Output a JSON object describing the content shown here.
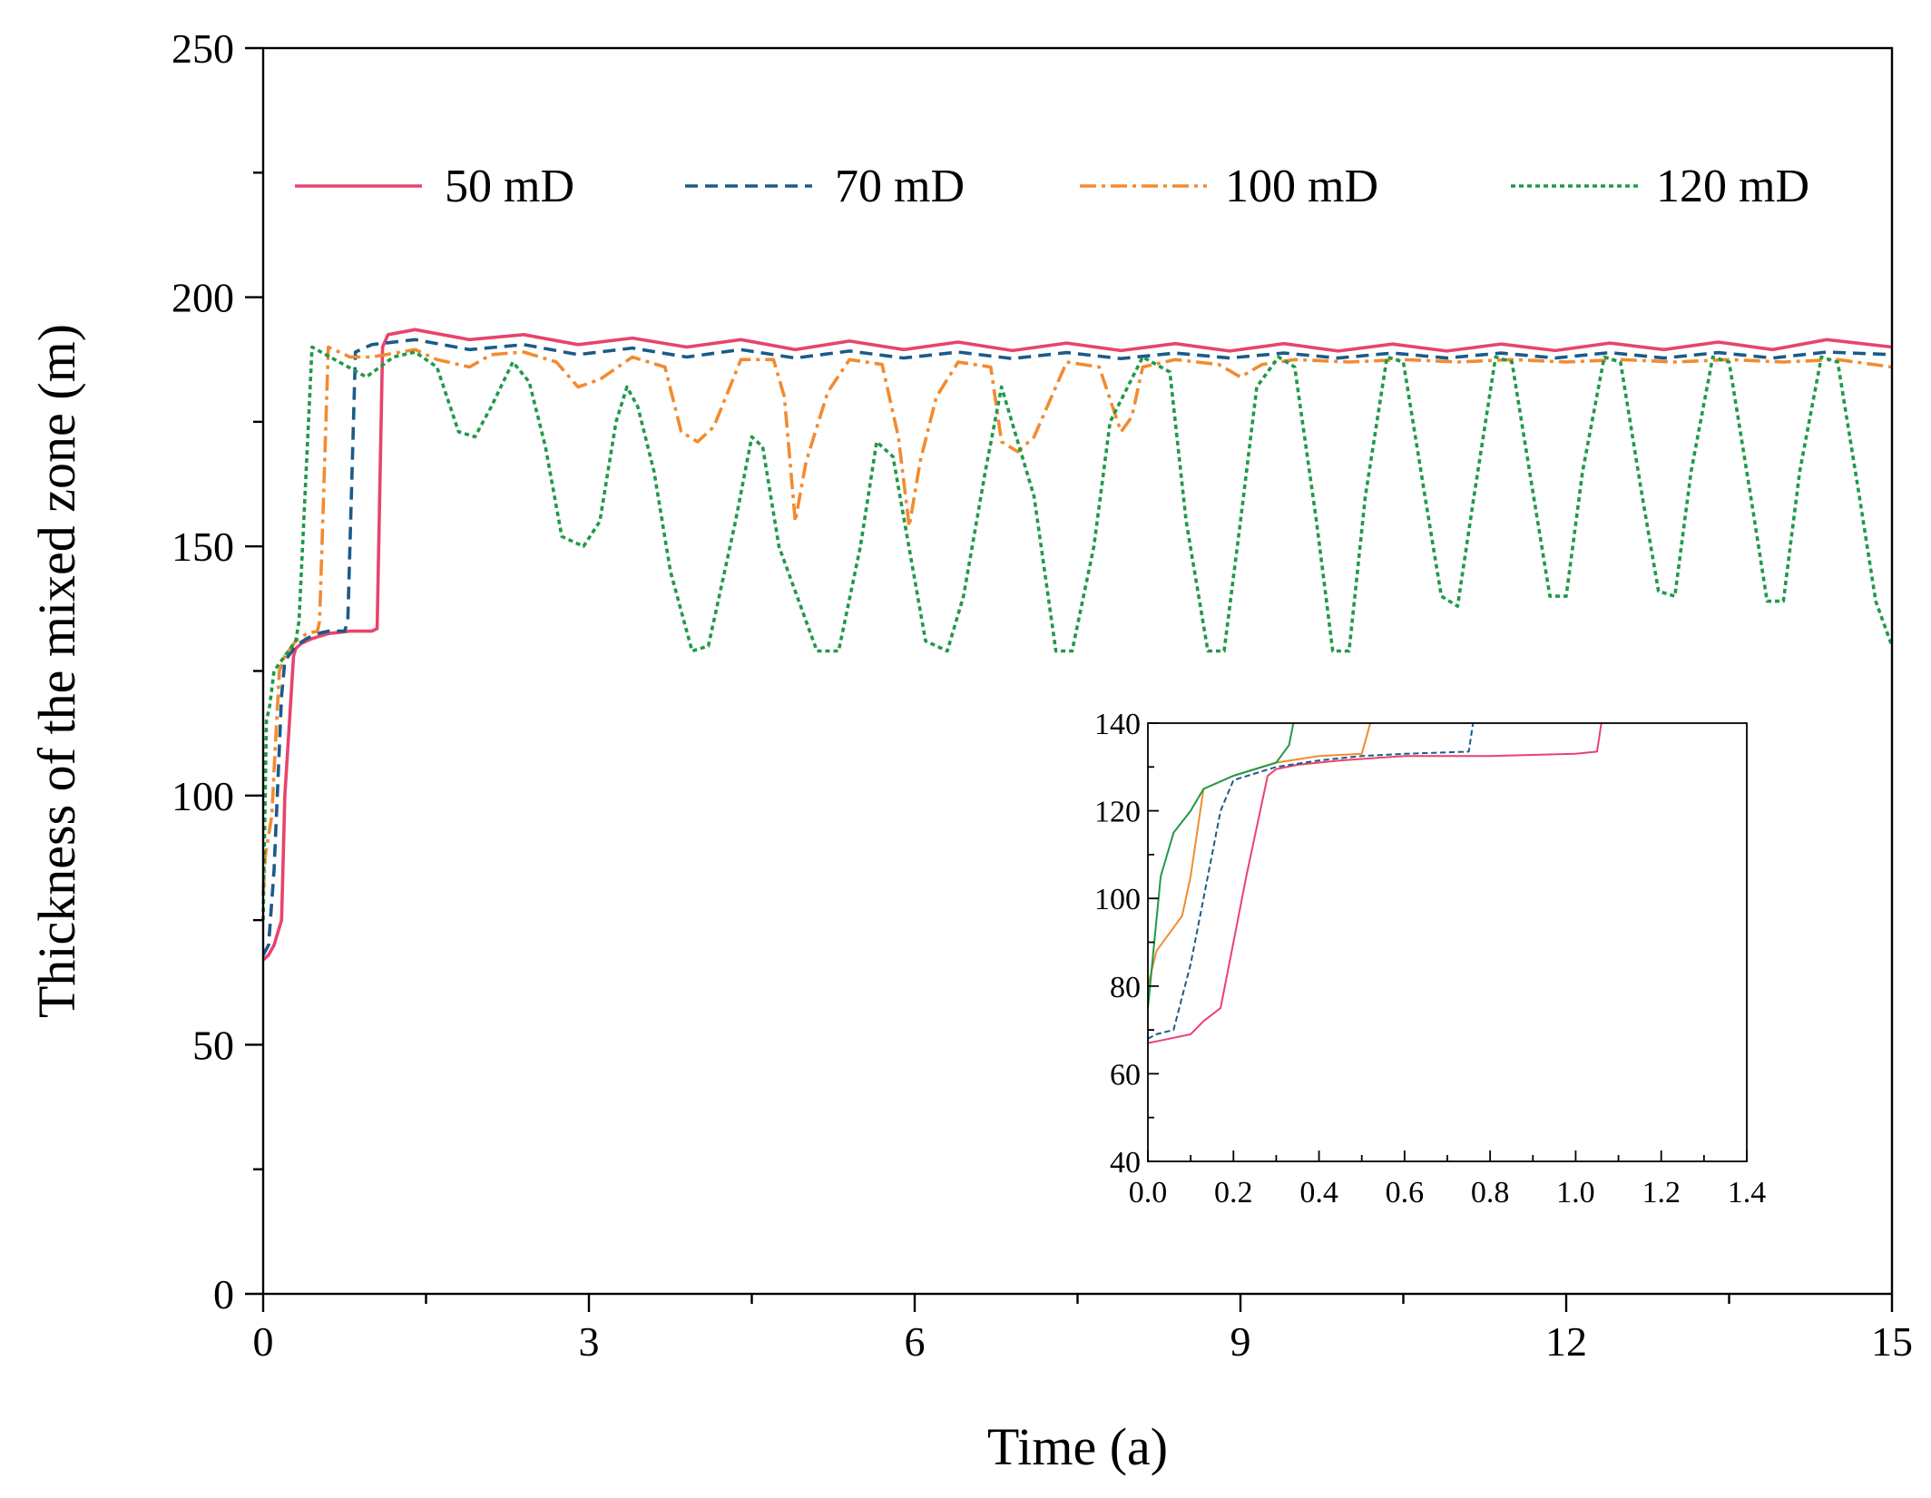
{
  "chart_data": [
    {
      "type": "line",
      "title": "",
      "xlabel": "Time (a)",
      "ylabel": "Thickness of the mixed zone (m)",
      "xlim": [
        0,
        15
      ],
      "ylim": [
        0,
        250
      ],
      "xticks": [
        0,
        3,
        6,
        9,
        12,
        15
      ],
      "yticks": [
        0,
        50,
        100,
        150,
        200,
        250
      ],
      "xtick_labels": [
        "0",
        "3",
        "6",
        "9",
        "12",
        "15"
      ],
      "ytick_labels": [
        "0",
        "50",
        "100",
        "150",
        "200",
        "250"
      ],
      "grid": false,
      "legend_position": "top",
      "series": [
        {
          "name": "50 mD",
          "color": "#e8436e",
          "dash": "solid",
          "x": [
            0,
            0.05,
            0.1,
            0.17,
            0.2,
            0.28,
            0.3,
            0.35,
            0.45,
            0.6,
            0.8,
            1.0,
            1.05,
            1.1,
            1.15,
            1.4,
            1.9,
            2.4,
            2.9,
            3.4,
            3.9,
            4.4,
            4.9,
            5.4,
            5.9,
            6.4,
            6.9,
            7.4,
            7.9,
            8.4,
            8.9,
            9.4,
            9.9,
            10.4,
            10.9,
            11.4,
            11.9,
            12.4,
            12.9,
            13.4,
            13.9,
            14.4,
            15.0
          ],
          "y": [
            67,
            68,
            70,
            75,
            100,
            128,
            129.5,
            130.5,
            131.5,
            132.5,
            133,
            133,
            133.5,
            190,
            192.5,
            193.5,
            191.5,
            192.5,
            190.5,
            191.8,
            190,
            191.5,
            189.5,
            191.2,
            189.5,
            191,
            189.3,
            190.8,
            189.3,
            190.7,
            189.2,
            190.7,
            189.2,
            190.6,
            189.2,
            190.6,
            189.3,
            190.8,
            189.5,
            191,
            189.5,
            191.5,
            190
          ]
        },
        {
          "name": "70 mD",
          "color": "#1a5b8a",
          "dash": "dashed",
          "x": [
            0,
            0.05,
            0.1,
            0.13,
            0.17,
            0.2,
            0.3,
            0.4,
            0.5,
            0.6,
            0.75,
            0.78,
            0.85,
            1.0,
            1.4,
            1.9,
            2.4,
            2.9,
            3.4,
            3.9,
            4.4,
            4.9,
            5.4,
            5.9,
            6.4,
            6.9,
            7.4,
            7.9,
            8.4,
            8.9,
            9.4,
            9.9,
            10.4,
            10.9,
            11.4,
            11.9,
            12.4,
            12.9,
            13.4,
            13.9,
            14.4,
            15.0
          ],
          "y": [
            68,
            70,
            85,
            100,
            120,
            127,
            130,
            131.5,
            132.5,
            133,
            133,
            135,
            189,
            190.5,
            191.5,
            189.5,
            190.5,
            188.5,
            189.8,
            188,
            189.5,
            187.8,
            189.2,
            187.8,
            189,
            187.7,
            188.9,
            187.7,
            188.8,
            187.8,
            188.8,
            187.8,
            188.8,
            187.8,
            188.8,
            187.8,
            188.9,
            187.8,
            188.9,
            187.8,
            189,
            188.5
          ]
        },
        {
          "name": "100 mD",
          "color": "#f28b30",
          "dash": "dashdot",
          "x": [
            0,
            0.02,
            0.05,
            0.08,
            0.1,
            0.15,
            0.2,
            0.3,
            0.4,
            0.5,
            0.52,
            0.6,
            0.8,
            1.0,
            1.4,
            1.6,
            1.9,
            2.1,
            2.4,
            2.7,
            2.9,
            3.1,
            3.4,
            3.7,
            3.85,
            4.0,
            4.15,
            4.4,
            4.7,
            4.8,
            4.9,
            5.0,
            5.2,
            5.4,
            5.7,
            5.85,
            5.95,
            6.05,
            6.2,
            6.4,
            6.7,
            6.8,
            6.95,
            7.1,
            7.4,
            7.7,
            7.9,
            8.0,
            8.1,
            8.4,
            8.8,
            9.0,
            9.2,
            9.5,
            10.0,
            10.5,
            11.0,
            11.5,
            12.0,
            12.5,
            13.0,
            13.5,
            14.0,
            14.5,
            15.0
          ],
          "y": [
            80,
            88,
            92,
            96,
            105,
            125,
            128,
            131,
            132.5,
            133,
            135,
            190,
            188,
            188,
            189.5,
            187.5,
            186,
            188.5,
            189,
            187,
            182,
            183.5,
            188,
            186,
            173,
            171,
            174,
            187.5,
            187.5,
            180,
            155,
            167,
            181,
            187.5,
            186.5,
            172,
            154,
            167,
            180,
            187,
            186,
            171,
            169,
            172,
            187,
            186,
            173,
            176,
            186,
            187.5,
            186.5,
            184,
            186.5,
            187.5,
            187,
            187.5,
            187,
            187.5,
            187,
            187.5,
            187,
            187.5,
            187,
            187.5,
            186
          ]
        },
        {
          "name": "120 mD",
          "color": "#1f9a48",
          "dash": "dotted",
          "x": [
            0,
            0.03,
            0.06,
            0.1,
            0.2,
            0.3,
            0.33,
            0.45,
            0.7,
            0.95,
            1.2,
            1.4,
            1.6,
            1.8,
            1.95,
            2.1,
            2.3,
            2.45,
            2.6,
            2.75,
            2.95,
            3.1,
            3.25,
            3.35,
            3.45,
            3.6,
            3.75,
            3.95,
            4.1,
            4.2,
            4.35,
            4.5,
            4.6,
            4.75,
            5.1,
            5.3,
            5.5,
            5.65,
            5.8,
            6.1,
            6.3,
            6.45,
            6.65,
            6.8,
            7.1,
            7.3,
            7.45,
            7.65,
            7.8,
            8.1,
            8.35,
            8.5,
            8.7,
            8.85,
            9.0,
            9.15,
            9.35,
            9.5,
            9.7,
            9.85,
            10.0,
            10.15,
            10.35,
            10.5,
            10.7,
            10.85,
            11.0,
            11.15,
            11.35,
            11.5,
            11.7,
            11.85,
            12.0,
            12.15,
            12.35,
            12.5,
            12.7,
            12.85,
            13.0,
            13.15,
            13.35,
            13.5,
            13.7,
            13.85,
            14.0,
            14.15,
            14.35,
            14.5,
            14.7,
            14.85,
            15.0
          ],
          "y": [
            75,
            115,
            118,
            125,
            128,
            131,
            135,
            190,
            187,
            184,
            188,
            189,
            186,
            173,
            172,
            178,
            187,
            183,
            170,
            152,
            150,
            155,
            175,
            182,
            178,
            165,
            145,
            129,
            130,
            140,
            155,
            172,
            170,
            150,
            129,
            129,
            150,
            171,
            168,
            131,
            129,
            140,
            165,
            182,
            160,
            129,
            129,
            150,
            175,
            188,
            185,
            155,
            129,
            129,
            155,
            182,
            188,
            186,
            155,
            129,
            129,
            160,
            188,
            187,
            160,
            140,
            138,
            160,
            188,
            187,
            160,
            140,
            140,
            165,
            188,
            187,
            160,
            141,
            140,
            165,
            188,
            187,
            160,
            139,
            139,
            165,
            188,
            187,
            160,
            139,
            130
          ]
        }
      ]
    },
    {
      "type": "line",
      "title": "",
      "xlabel": "",
      "ylabel": "",
      "xlim": [
        0,
        1.4
      ],
      "ylim": [
        40,
        140
      ],
      "xticks": [
        0,
        0.2,
        0.4,
        0.6,
        0.8,
        1.0,
        1.2,
        1.4
      ],
      "yticks": [
        40,
        60,
        80,
        100,
        120,
        140
      ],
      "xtick_labels": [
        "0.0",
        "0.2",
        "0.4",
        "0.6",
        "0.8",
        "1.0",
        "1.2",
        "1.4"
      ],
      "ytick_labels": [
        "40",
        "60",
        "80",
        "100",
        "120",
        "140"
      ],
      "grid": false,
      "series": [
        {
          "name": "50 mD",
          "color": "#e8436e",
          "dash": "solid",
          "x": [
            0,
            0.05,
            0.1,
            0.13,
            0.17,
            0.2,
            0.23,
            0.28,
            0.3,
            0.35,
            0.45,
            0.6,
            0.8,
            1.0,
            1.05,
            1.06
          ],
          "y": [
            67,
            68,
            69,
            72,
            75,
            90,
            105,
            128,
            129.5,
            130.5,
            131.5,
            132.5,
            132.5,
            133,
            133.5,
            140
          ]
        },
        {
          "name": "70 mD",
          "color": "#1a5b8a",
          "dash": "dashed",
          "x": [
            0,
            0.02,
            0.06,
            0.1,
            0.13,
            0.17,
            0.2,
            0.3,
            0.4,
            0.5,
            0.6,
            0.75,
            0.76
          ],
          "y": [
            68,
            69,
            70,
            85,
            100,
            120,
            127,
            130,
            131.5,
            132.5,
            133,
            133.5,
            140
          ]
        },
        {
          "name": "100 mD",
          "color": "#f28b30",
          "dash": "solid",
          "x": [
            0,
            0.02,
            0.05,
            0.08,
            0.1,
            0.13,
            0.2,
            0.3,
            0.4,
            0.5,
            0.52
          ],
          "y": [
            80,
            88,
            92,
            96,
            105,
            125,
            128,
            131,
            132.5,
            133,
            140
          ]
        },
        {
          "name": "120 mD",
          "color": "#1f9a48",
          "dash": "solid",
          "x": [
            0,
            0.03,
            0.06,
            0.1,
            0.13,
            0.2,
            0.3,
            0.33,
            0.34
          ],
          "y": [
            75,
            105,
            115,
            120,
            125,
            128,
            131,
            135,
            140
          ]
        }
      ]
    }
  ]
}
